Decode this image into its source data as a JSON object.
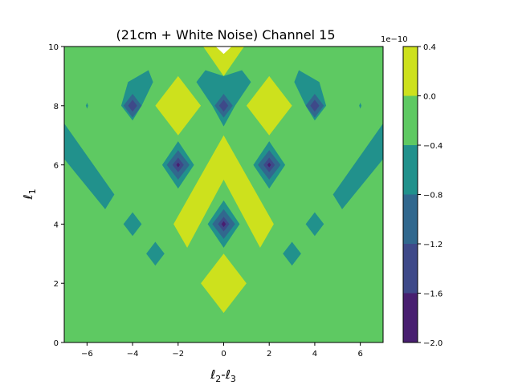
{
  "chart_data": {
    "type": "heatmap",
    "subtype": "filled-contour",
    "title": "(21cm + White Noise) Channel 15",
    "xlabel": "ℓ2-ℓ3",
    "ylabel": "ℓ1",
    "xlim": [
      -7,
      7
    ],
    "ylim": [
      0,
      10
    ],
    "xticks": [
      -6,
      -4,
      -2,
      0,
      2,
      4,
      6
    ],
    "yticks": [
      0,
      2,
      4,
      6,
      8,
      10
    ],
    "background_level_color": "#5ec962",
    "colorbar": {
      "offset_label": "1e−10",
      "ticks": [
        "0.4",
        "0.0",
        "−0.4",
        "−0.8",
        "−1.2",
        "−1.6",
        "−2.0"
      ],
      "levels": [
        -2.0,
        -1.6,
        -1.2,
        -0.8,
        -0.4,
        0.0,
        0.4
      ],
      "colors": [
        "#481f70",
        "#3e4989",
        "#31688e",
        "#21918c",
        "#5ec962",
        "#cde11d"
      ]
    },
    "regions": [
      {
        "level": "yellow",
        "color": "#cde11d",
        "shape": "central chevron",
        "points": [
          [
            0,
            7
          ],
          [
            2.2,
            4
          ],
          [
            1.6,
            3.2
          ],
          [
            0,
            5.5
          ],
          [
            -1.6,
            3.2
          ],
          [
            -2.2,
            4
          ]
        ]
      },
      {
        "level": "yellow",
        "color": "#cde11d",
        "shape": "diamond",
        "points": [
          [
            0,
            3
          ],
          [
            1,
            2
          ],
          [
            0,
            1
          ],
          [
            -1,
            2
          ]
        ]
      },
      {
        "level": "yellow",
        "color": "#cde11d",
        "shape": "diamond",
        "points": [
          [
            -2,
            9
          ],
          [
            -1,
            8
          ],
          [
            -2,
            7
          ],
          [
            -3,
            8
          ]
        ]
      },
      {
        "level": "yellow",
        "color": "#cde11d",
        "shape": "diamond",
        "points": [
          [
            2,
            9
          ],
          [
            3,
            8
          ],
          [
            2,
            7
          ],
          [
            1,
            8
          ]
        ]
      },
      {
        "level": "yellow",
        "color": "#cde11d",
        "shape": "top wedge",
        "points": [
          [
            -0.9,
            10
          ],
          [
            0.9,
            10
          ],
          [
            0,
            9
          ]
        ]
      },
      {
        "level": "teal",
        "color": "#21918c",
        "shape": "band",
        "points": [
          [
            -7,
            7.4
          ],
          [
            -4.8,
            5
          ],
          [
            -5.2,
            4.5
          ],
          [
            -7,
            6.2
          ]
        ]
      },
      {
        "level": "teal",
        "color": "#21918c",
        "shape": "band",
        "points": [
          [
            7,
            7.4
          ],
          [
            4.8,
            5
          ],
          [
            5.2,
            4.5
          ],
          [
            7,
            6.2
          ]
        ]
      },
      {
        "level": "teal",
        "color": "#21918c",
        "shape": "diamond",
        "points": [
          [
            -2,
            6.8
          ],
          [
            -1.3,
            6
          ],
          [
            -2,
            5.2
          ],
          [
            -2.7,
            6
          ]
        ]
      },
      {
        "level": "teal",
        "color": "#21918c",
        "shape": "diamond",
        "points": [
          [
            2,
            6.8
          ],
          [
            2.7,
            6
          ],
          [
            2,
            5.2
          ],
          [
            1.3,
            6
          ]
        ]
      },
      {
        "level": "teal",
        "color": "#21918c",
        "shape": "diamond",
        "points": [
          [
            0,
            4.8
          ],
          [
            0.7,
            4
          ],
          [
            0,
            3.2
          ],
          [
            -0.7,
            4
          ]
        ]
      },
      {
        "level": "teal",
        "color": "#21918c",
        "shape": "arc",
        "points": [
          [
            -4.2,
            8.8
          ],
          [
            -3.3,
            9.2
          ],
          [
            -3.1,
            8.8
          ],
          [
            -3.6,
            8
          ],
          [
            -4,
            7.5
          ],
          [
            -4.5,
            8
          ]
        ]
      },
      {
        "level": "teal",
        "color": "#21918c",
        "shape": "arc",
        "points": [
          [
            4.2,
            8.8
          ],
          [
            3.3,
            9.2
          ],
          [
            3.1,
            8.8
          ],
          [
            3.6,
            8
          ],
          [
            4,
            7.5
          ],
          [
            4.5,
            8
          ]
        ]
      },
      {
        "level": "teal",
        "color": "#21918c",
        "shape": "arc",
        "points": [
          [
            0,
            9
          ],
          [
            0.8,
            9.2
          ],
          [
            1.2,
            8.8
          ],
          [
            0.5,
            8
          ],
          [
            0,
            7.3
          ],
          [
            -0.5,
            8
          ],
          [
            -1.2,
            8.8
          ],
          [
            -0.8,
            9.2
          ]
        ]
      },
      {
        "level": "teal",
        "color": "#21918c",
        "shape": "small diamond",
        "points": [
          [
            -4,
            4.4
          ],
          [
            -3.6,
            4
          ],
          [
            -4,
            3.6
          ],
          [
            -4.4,
            4
          ]
        ]
      },
      {
        "level": "teal",
        "color": "#21918c",
        "shape": "small diamond",
        "points": [
          [
            4,
            4.4
          ],
          [
            4.4,
            4
          ],
          [
            4,
            3.6
          ],
          [
            3.6,
            4
          ]
        ]
      },
      {
        "level": "teal",
        "color": "#21918c",
        "shape": "small diamond",
        "points": [
          [
            -3,
            3.4
          ],
          [
            -2.6,
            3
          ],
          [
            -3,
            2.6
          ],
          [
            -3.4,
            3
          ]
        ]
      },
      {
        "level": "teal",
        "color": "#21918c",
        "shape": "small diamond",
        "points": [
          [
            3,
            3.4
          ],
          [
            3.4,
            3
          ],
          [
            3,
            2.6
          ],
          [
            2.6,
            3
          ]
        ]
      },
      {
        "level": "blue",
        "color": "#31688e",
        "shape": "diamond",
        "points": [
          [
            -2,
            6.5
          ],
          [
            -1.5,
            6
          ],
          [
            -2,
            5.5
          ],
          [
            -2.5,
            6
          ]
        ]
      },
      {
        "level": "blue",
        "color": "#31688e",
        "shape": "diamond",
        "points": [
          [
            2,
            6.5
          ],
          [
            2.5,
            6
          ],
          [
            2,
            5.5
          ],
          [
            1.5,
            6
          ]
        ]
      },
      {
        "level": "blue",
        "color": "#31688e",
        "shape": "diamond",
        "points": [
          [
            0,
            4.5
          ],
          [
            0.5,
            4
          ],
          [
            0,
            3.5
          ],
          [
            -0.5,
            4
          ]
        ]
      },
      {
        "level": "blue",
        "color": "#31688e",
        "shape": "diamond",
        "points": [
          [
            -4,
            8.4
          ],
          [
            -3.6,
            8
          ],
          [
            -4,
            7.6
          ],
          [
            -4.4,
            8
          ]
        ]
      },
      {
        "level": "blue",
        "color": "#31688e",
        "shape": "diamond",
        "points": [
          [
            4,
            8.4
          ],
          [
            4.4,
            8
          ],
          [
            4,
            7.6
          ],
          [
            3.6,
            8
          ]
        ]
      },
      {
        "level": "blue",
        "color": "#31688e",
        "shape": "diamond",
        "points": [
          [
            0,
            8.4
          ],
          [
            0.4,
            8
          ],
          [
            0,
            7.6
          ],
          [
            -0.4,
            8
          ]
        ]
      },
      {
        "level": "dark",
        "color": "#3e4989",
        "shape": "diamond",
        "points": [
          [
            -2,
            6.25
          ],
          [
            -1.75,
            6
          ],
          [
            -2,
            5.75
          ],
          [
            -2.25,
            6
          ]
        ]
      },
      {
        "level": "dark",
        "color": "#3e4989",
        "shape": "diamond",
        "points": [
          [
            2,
            6.25
          ],
          [
            2.25,
            6
          ],
          [
            2,
            5.75
          ],
          [
            1.75,
            6
          ]
        ]
      },
      {
        "level": "dark",
        "color": "#3e4989",
        "shape": "diamond",
        "points": [
          [
            0,
            4.25
          ],
          [
            0.25,
            4
          ],
          [
            0,
            3.75
          ],
          [
            -0.25,
            4
          ]
        ]
      },
      {
        "level": "dark",
        "color": "#3e4989",
        "shape": "diamond",
        "points": [
          [
            -4,
            8.2
          ],
          [
            -3.8,
            8
          ],
          [
            -4,
            7.8
          ],
          [
            -4.2,
            8
          ]
        ]
      },
      {
        "level": "dark",
        "color": "#3e4989",
        "shape": "diamond",
        "points": [
          [
            4,
            8.2
          ],
          [
            4.2,
            8
          ],
          [
            4,
            7.8
          ],
          [
            3.8,
            8
          ]
        ]
      },
      {
        "level": "dark",
        "color": "#3e4989",
        "shape": "diamond",
        "points": [
          [
            0,
            8.2
          ],
          [
            0.2,
            8
          ],
          [
            0,
            7.8
          ],
          [
            -0.2,
            8
          ]
        ]
      },
      {
        "level": "darkest",
        "color": "#481f70",
        "shape": "dot",
        "points": [
          [
            0,
            4.1
          ],
          [
            0.1,
            4
          ],
          [
            0,
            3.9
          ],
          [
            -0.1,
            4
          ]
        ]
      },
      {
        "level": "darkest",
        "color": "#481f70",
        "shape": "dot",
        "points": [
          [
            -2,
            6.08
          ],
          [
            -1.92,
            6
          ],
          [
            -2,
            5.92
          ],
          [
            -2.08,
            6
          ]
        ]
      },
      {
        "level": "darkest",
        "color": "#481f70",
        "shape": "dot",
        "points": [
          [
            2,
            6.08
          ],
          [
            2.08,
            6
          ],
          [
            2,
            5.92
          ],
          [
            1.92,
            6
          ]
        ]
      },
      {
        "level": "teal",
        "color": "#21918c",
        "shape": "speck",
        "points": [
          [
            -6,
            8.1
          ],
          [
            -5.95,
            8
          ],
          [
            -6,
            7.9
          ],
          [
            -6.05,
            8
          ]
        ]
      },
      {
        "level": "teal",
        "color": "#21918c",
        "shape": "speck",
        "points": [
          [
            6,
            8.1
          ],
          [
            6.05,
            8
          ],
          [
            6,
            7.9
          ],
          [
            5.95,
            8
          ]
        ]
      },
      {
        "level": "white",
        "color": "#ffffff",
        "shape": "top notch",
        "points": [
          [
            -0.35,
            10
          ],
          [
            0.35,
            10
          ],
          [
            0,
            9.75
          ]
        ]
      }
    ]
  }
}
